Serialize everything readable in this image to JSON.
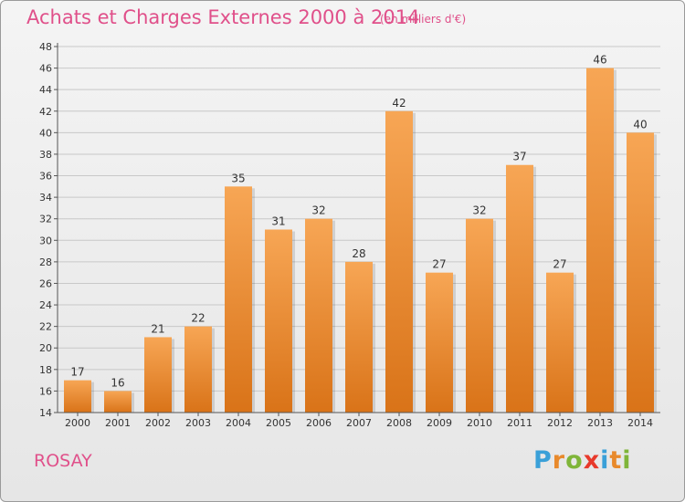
{
  "header": {
    "title": "Achats et Charges Externes 2000 à 2014",
    "subtitle": "(en milliers d'€)"
  },
  "footer": {
    "place": "ROSAY",
    "brand": "Proxiti"
  },
  "colors": {
    "title": "#e0508a",
    "bar_top": "#f7a655",
    "bar_bottom": "#d97318"
  },
  "chart_data": {
    "type": "bar",
    "title": "Achats et Charges Externes 2000 à 2014",
    "subtitle": "(en milliers d'€)",
    "xlabel": "",
    "ylabel": "",
    "categories": [
      "2000",
      "2001",
      "2002",
      "2003",
      "2004",
      "2005",
      "2006",
      "2007",
      "2008",
      "2009",
      "2010",
      "2011",
      "2012",
      "2013",
      "2014"
    ],
    "values": [
      17,
      16,
      21,
      22,
      35,
      31,
      32,
      28,
      42,
      27,
      32,
      37,
      27,
      46,
      40
    ],
    "ylim": [
      14,
      48
    ],
    "yticks": [
      14,
      16,
      18,
      20,
      22,
      24,
      26,
      28,
      30,
      32,
      34,
      36,
      38,
      40,
      42,
      44,
      46,
      48
    ],
    "grid": true,
    "legend": "none"
  }
}
